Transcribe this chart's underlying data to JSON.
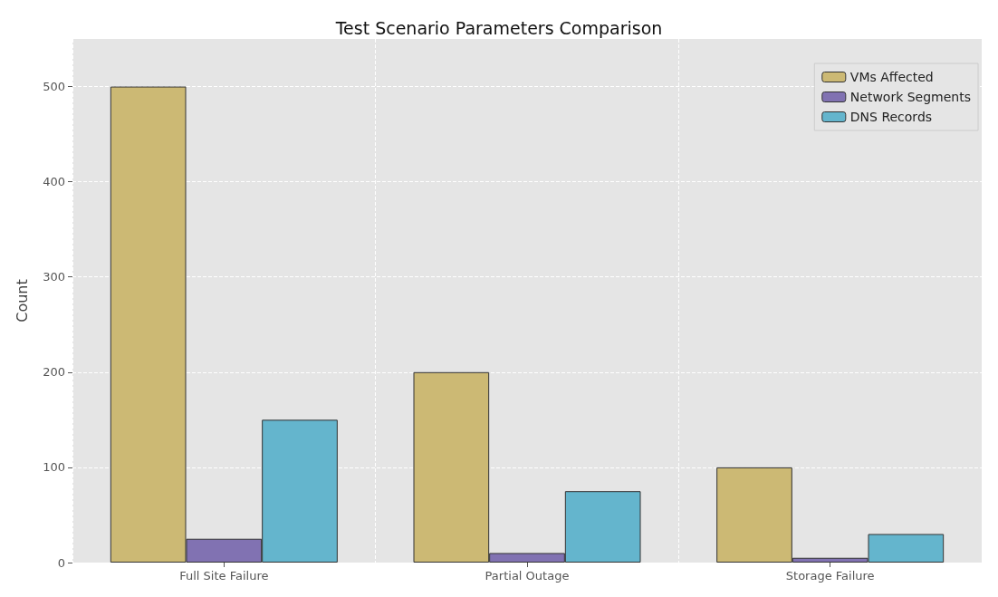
{
  "chart_data": {
    "type": "bar",
    "title": "Test Scenario Parameters Comparison",
    "ylabel": "Count",
    "categories": [
      "Full Site Failure",
      "Partial Outage",
      "Storage Failure"
    ],
    "series": [
      {
        "name": "VMs Affected",
        "color": "#ccb974",
        "values": [
          500,
          200,
          100
        ]
      },
      {
        "name": "Network Segments",
        "color": "#8172b2",
        "values": [
          25,
          10,
          5
        ]
      },
      {
        "name": "DNS Records",
        "color": "#64b5cd",
        "values": [
          150,
          75,
          30
        ]
      }
    ],
    "ylim": [
      0,
      550
    ],
    "yticks": [
      0,
      100,
      200,
      300,
      400,
      500
    ],
    "grid": true,
    "legend": "top right"
  }
}
